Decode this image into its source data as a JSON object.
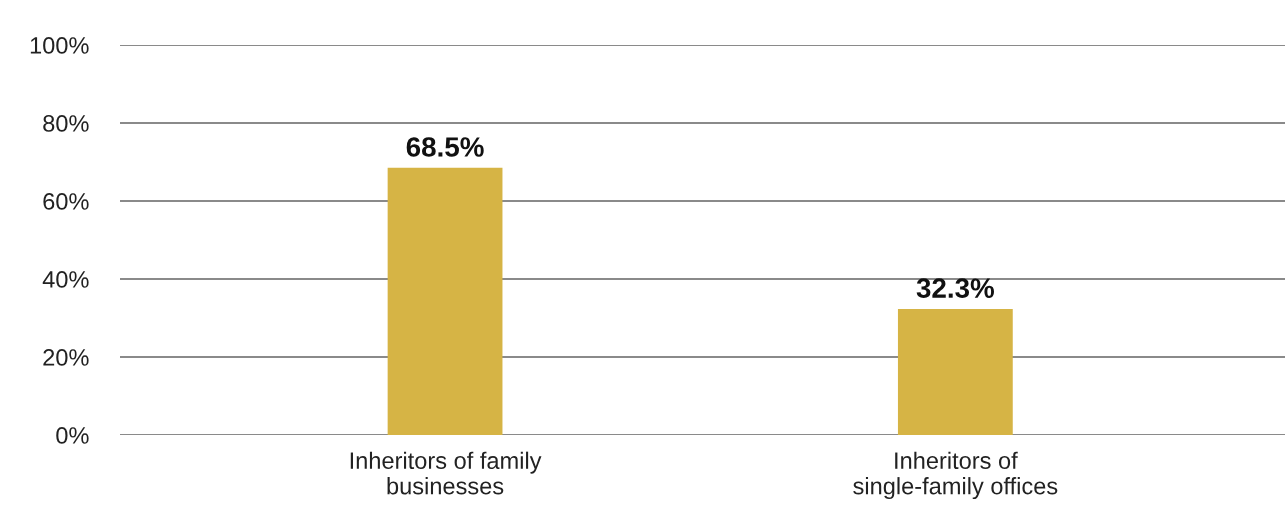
{
  "chart_data": {
    "type": "bar",
    "categories": [
      "Inheritors of family\nbusinesses",
      "Inheritors of\nsingle-family offices"
    ],
    "values": [
      68.5,
      32.3
    ],
    "color": "#d6b445",
    "value_labels": [
      "68.5%",
      "32.3%"
    ],
    "ylim": [
      0,
      100
    ],
    "yticks": [
      {
        "value": 0,
        "label": "0%"
      },
      {
        "value": 20,
        "label": "20%"
      },
      {
        "value": 40,
        "label": "40%"
      },
      {
        "value": 60,
        "label": "60%"
      },
      {
        "value": 80,
        "label": "80%"
      },
      {
        "value": 100,
        "label": "100%"
      }
    ],
    "grid": "y"
  }
}
